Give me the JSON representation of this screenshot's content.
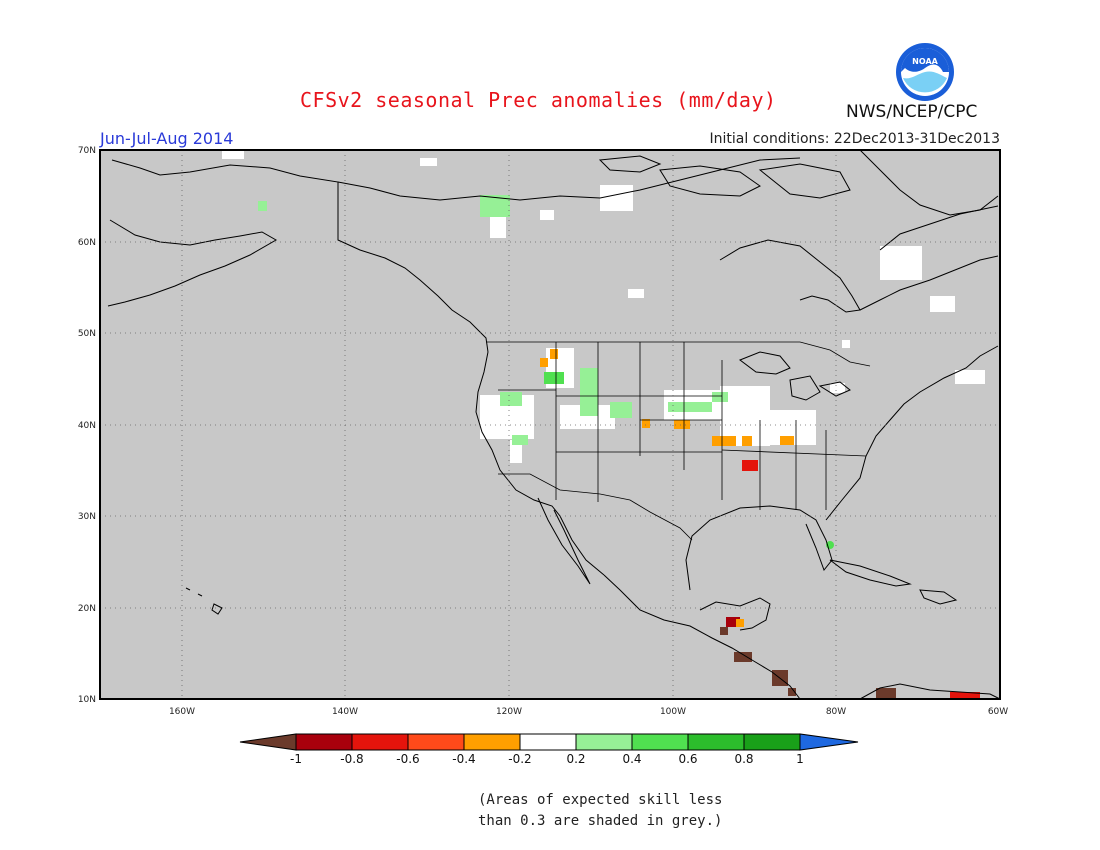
{
  "title": "CFSv2 seasonal Prec anomalies (mm/day)",
  "org": "NWS/NCEP/CPC",
  "logo_text": "NOAA",
  "season": "Jun-Jul-Aug 2014",
  "initial_conditions": "Initial conditions: 22Dec2013-31Dec2013",
  "map": {
    "projection": "lat-lon",
    "lon_range": [
      -170,
      -60
    ],
    "lat_range": [
      10,
      70
    ],
    "lat_labels": [
      "10N",
      "20N",
      "30N",
      "40N",
      "50N",
      "60N",
      "70N"
    ],
    "lon_labels": [
      "160W",
      "140W",
      "120W",
      "100W",
      "80W",
      "60W"
    ],
    "background_color": "#c8c8c8",
    "gridlines": "dotted"
  },
  "legend": {
    "labels": [
      "-1",
      "-0.8",
      "-0.6",
      "-0.4",
      "-0.2",
      "0.2",
      "0.4",
      "0.6",
      "0.8",
      "1"
    ],
    "colors": [
      "#6b3a2b",
      "#a8000c",
      "#e4140c",
      "#ff4a1a",
      "#ff9f00",
      "#ffffff",
      "#96f096",
      "#50e050",
      "#2cbd2c",
      "#19a019",
      "#1e68e0"
    ]
  },
  "note": "(Areas of expected skill less\nthan 0.3 are shaded in grey.)"
}
